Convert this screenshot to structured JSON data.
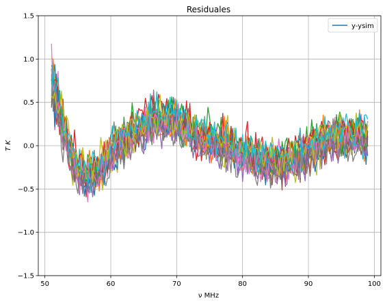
{
  "chart_data": {
    "type": "line",
    "title": "Residuales",
    "xlabel": "ν MHz",
    "ylabel": "T K",
    "xlim": [
      49,
      101
    ],
    "ylim": [
      -1.5,
      1.5
    ],
    "xticks": [
      50,
      60,
      70,
      80,
      90,
      100
    ],
    "yticks": [
      -1.5,
      -1.0,
      -0.5,
      0.0,
      0.5,
      1.0,
      1.5
    ],
    "xtick_labels": [
      "50",
      "60",
      "70",
      "80",
      "90",
      "100"
    ],
    "ytick_labels": [
      "−1.5",
      "−1.0",
      "−0.5",
      "0.0",
      "0.5",
      "1.0",
      "1.5"
    ],
    "grid": true,
    "legend_position": "top-right",
    "legend": [
      {
        "label": "y-ysim",
        "color": "#1f77b4"
      }
    ],
    "series_colors": [
      "#1f77b4",
      "#ff7f0e",
      "#2ca02c",
      "#d62728",
      "#9467bd",
      "#8c564b",
      "#e377c2",
      "#7f7f7f",
      "#bcbd22",
      "#17becf"
    ],
    "x_range": [
      51,
      99
    ],
    "x_step": 0.25,
    "num_series": 20,
    "noise_amplitude": 0.2,
    "mean_profile": {
      "x": [
        51,
        52,
        53,
        54,
        55,
        56,
        57,
        58,
        59,
        60,
        62,
        64,
        66,
        68,
        70,
        72,
        74,
        76,
        78,
        80,
        82,
        84,
        86,
        88,
        90,
        92,
        94,
        96,
        98,
        99
      ],
      "y": [
        0.7,
        0.45,
        0.15,
        -0.1,
        -0.3,
        -0.35,
        -0.35,
        -0.3,
        -0.2,
        -0.1,
        0.05,
        0.2,
        0.3,
        0.3,
        0.25,
        0.15,
        0.1,
        0.05,
        0.0,
        -0.1,
        -0.15,
        -0.2,
        -0.2,
        -0.15,
        -0.05,
        0.05,
        0.1,
        0.1,
        0.1,
        0.1
      ]
    }
  }
}
